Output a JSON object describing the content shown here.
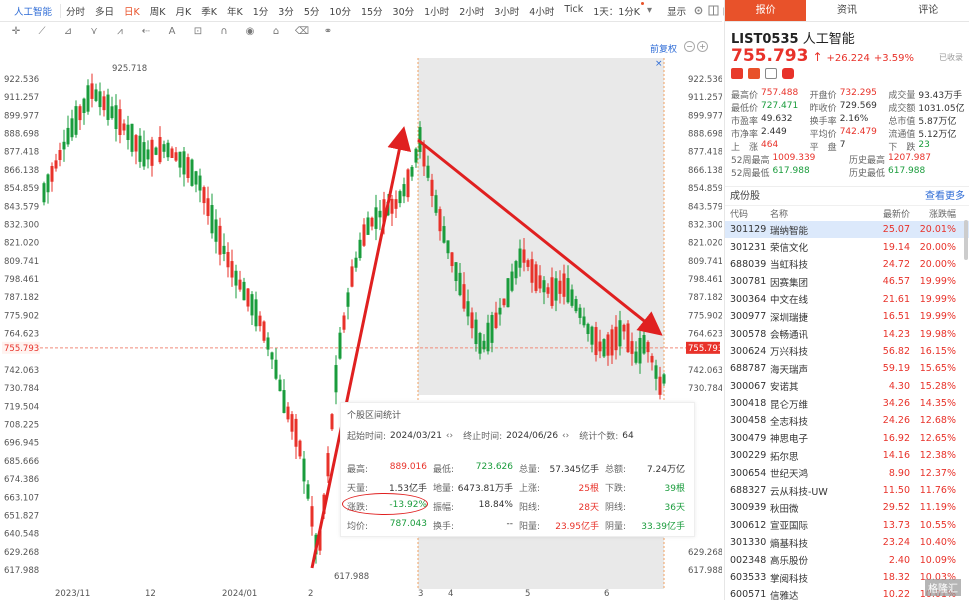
{
  "toolbar": {
    "symbol": "人工智能",
    "timeframes": [
      "分时",
      "多日",
      "日K",
      "周K",
      "月K",
      "季K",
      "年K",
      "1分",
      "3分",
      "5分",
      "10分",
      "15分",
      "30分",
      "1小时",
      "2小时",
      "3小时",
      "4小时",
      "Tick"
    ],
    "active_timeframe": "日K",
    "multi_view": "1天：1分K",
    "display": "显示"
  },
  "chart": {
    "recover_label": "前复权",
    "price_axis": [
      "922.536",
      "911.257",
      "899.977",
      "888.698",
      "877.418",
      "866.138",
      "854.859",
      "843.579",
      "832.300",
      "821.020",
      "809.741",
      "798.461",
      "787.182",
      "775.902",
      "764.623",
      "755.793",
      "742.063",
      "730.784",
      "719.504",
      "708.225",
      "696.945",
      "685.666",
      "674.386",
      "663.107",
      "651.827",
      "640.548",
      "629.268",
      "617.988"
    ],
    "inner_price_axis": [
      "922.536",
      "911.257",
      "899.977",
      "888.698",
      "877.418",
      "866.138",
      "854.859",
      "843.579",
      "832.300",
      "821.020",
      "809.741",
      "798.461",
      "787.182",
      "775.902",
      "764.623",
      "755.793",
      "742.063",
      "730.784"
    ],
    "inner_bottom_axis": [
      "629.268",
      "617.988"
    ],
    "date_axis": [
      "2023/11",
      "12",
      "2024/01",
      "2",
      "3",
      "4",
      "5",
      "6"
    ],
    "high_label": "925.718",
    "low_label": "617.988",
    "current_price_label": "755.793",
    "colors": {
      "up": "#e8322a",
      "down": "#1a9c3c",
      "highlight": "#e6e6e6"
    }
  },
  "stats": {
    "title": "个股区间统计",
    "start_label": "起始时间:",
    "start": "2024/03/21",
    "end_label": "终止时间:",
    "end": "2024/06/26",
    "count_label": "统计个数:",
    "count": "64",
    "rows": [
      [
        [
          "最高:",
          "889.016",
          "red"
        ],
        [
          "最低:",
          "723.626",
          "green"
        ],
        [
          "总量:",
          "57.345亿手",
          ""
        ],
        [
          "总额:",
          "7.24万亿",
          ""
        ]
      ],
      [
        [
          "天量:",
          "1.53亿手",
          ""
        ],
        [
          "地量:",
          "6473.81万手",
          ""
        ],
        [
          "上涨:",
          "25根",
          "red"
        ],
        [
          "下跌:",
          "39根",
          "green"
        ]
      ],
      [
        [
          "涨跌:",
          "-13.92%",
          "green"
        ],
        [
          "振幅:",
          "18.84%",
          ""
        ],
        [
          "阳线:",
          "28天",
          "red"
        ],
        [
          "阴线:",
          "36天",
          "green"
        ]
      ],
      [
        [
          "均价:",
          "787.043",
          "green"
        ],
        [
          "换手:",
          "--",
          ""
        ],
        [
          "阳量:",
          "23.95亿手",
          "red"
        ],
        [
          "阴量:",
          "33.39亿手",
          "green"
        ]
      ]
    ]
  },
  "panel": {
    "tabs": [
      "报价",
      "资讯",
      "评论"
    ],
    "code": "LIST0535",
    "name": "人工智能",
    "price": "755.793",
    "change": "+26.224",
    "change_pct": "+3.59%",
    "fav": "已收录",
    "quote_rows": [
      [
        [
          "最高价",
          "757.488",
          "red"
        ],
        [
          "开盘价",
          "732.295",
          "red"
        ],
        [
          "成交量",
          "93.43万手",
          ""
        ]
      ],
      [
        [
          "最低价",
          "727.471",
          "green"
        ],
        [
          "昨收价",
          "729.569",
          ""
        ],
        [
          "成交额",
          "1031.05亿",
          ""
        ]
      ],
      [
        [
          "市盈率",
          "49.632",
          ""
        ],
        [
          "换手率",
          "2.16%",
          ""
        ],
        [
          "总市值",
          "5.87万亿",
          ""
        ]
      ],
      [
        [
          "市净率",
          "2.449",
          ""
        ],
        [
          "平均价",
          "742.479",
          "red"
        ],
        [
          "流通值",
          "5.12万亿",
          ""
        ]
      ],
      [
        [
          "上　涨",
          "464",
          "red"
        ],
        [
          "平　盘",
          "7",
          ""
        ],
        [
          "下　跌",
          "23",
          "green"
        ]
      ]
    ],
    "week52": [
      [
        [
          "52周最高",
          "1009.339",
          "red"
        ],
        [
          "历史最高",
          "1207.987",
          "red"
        ]
      ],
      [
        [
          "52周最低",
          "617.988",
          "green"
        ],
        [
          "历史最低",
          "617.988",
          "green"
        ]
      ]
    ],
    "component_title": "成份股",
    "more": "查看更多",
    "columns": [
      "代码",
      "名称",
      "最新价",
      "涨跌幅"
    ],
    "stocks": [
      [
        "301129",
        "瑞纳智能",
        "25.07",
        "20.01%"
      ],
      [
        "301231",
        "荣信文化",
        "19.14",
        "20.00%"
      ],
      [
        "688039",
        "当虹科技",
        "24.72",
        "20.00%"
      ],
      [
        "300781",
        "因赛集团",
        "46.57",
        "19.99%"
      ],
      [
        "300364",
        "中文在线",
        "21.61",
        "19.99%"
      ],
      [
        "300977",
        "深圳瑞捷",
        "16.51",
        "19.99%"
      ],
      [
        "300578",
        "会畅通讯",
        "14.23",
        "19.98%"
      ],
      [
        "300624",
        "万兴科技",
        "56.82",
        "16.15%"
      ],
      [
        "688787",
        "海天瑞声",
        "59.19",
        "15.65%"
      ],
      [
        "300067",
        "安诺其",
        "4.30",
        "15.28%"
      ],
      [
        "300418",
        "昆仑万维",
        "34.26",
        "14.35%"
      ],
      [
        "300458",
        "全志科技",
        "24.26",
        "12.68%"
      ],
      [
        "300479",
        "神思电子",
        "16.92",
        "12.65%"
      ],
      [
        "300229",
        "拓尔思",
        "14.16",
        "12.38%"
      ],
      [
        "300654",
        "世纪天鸿",
        "8.90",
        "12.37%"
      ],
      [
        "688327",
        "云从科技-UW",
        "11.50",
        "11.76%"
      ],
      [
        "300939",
        "秋田微",
        "29.52",
        "11.19%"
      ],
      [
        "300612",
        "宣亚国际",
        "13.73",
        "10.55%"
      ],
      [
        "301330",
        "熵基科技",
        "23.24",
        "10.40%"
      ],
      [
        "002348",
        "高乐股份",
        "2.40",
        "10.09%"
      ],
      [
        "603533",
        "掌阅科技",
        "18.32",
        "10.03%"
      ],
      [
        "600571",
        "信雅达",
        "10.22",
        "10.01%"
      ]
    ]
  }
}
